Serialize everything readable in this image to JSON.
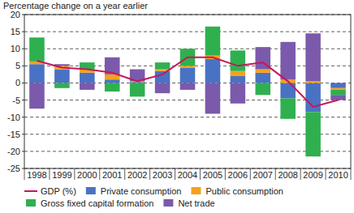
{
  "chart_data": {
    "type": "bar",
    "stacked": true,
    "grid": true,
    "legend": "bottom",
    "y_label": "Percentage change on a year earlier",
    "categories": [
      "1998",
      "1999",
      "2000",
      "2001",
      "2002",
      "2003",
      "2004",
      "2005",
      "2006",
      "2007",
      "2008",
      "2009",
      "2010"
    ],
    "ylim": [
      -25,
      20
    ],
    "yticks": [
      -25,
      -20,
      -15,
      -10,
      -5,
      0,
      5,
      10,
      15,
      20
    ],
    "series": [
      {
        "name": "GDP (%)",
        "type": "line",
        "color": "#c2185b",
        "values": [
          6.5,
          4.5,
          4,
          3,
          0.5,
          2.5,
          7.5,
          7.5,
          5,
          6,
          0.5,
          -7,
          -5
        ]
      },
      {
        "name": "Private consumption",
        "color": "#4a72c4",
        "values": [
          5.5,
          4,
          3,
          1,
          0.3,
          3.5,
          4.5,
          7,
          2,
          3,
          -4.5,
          -8.5,
          -1.5
        ]
      },
      {
        "name": "Public consumption",
        "color": "#f4a21c",
        "values": [
          0.8,
          1,
          1,
          1.5,
          0.2,
          0.5,
          0.5,
          1,
          1.5,
          1,
          1,
          0.5,
          -0.5
        ]
      },
      {
        "name": "Gross fixed capital formation",
        "color": "#2fb04f",
        "values": [
          7,
          -1.5,
          2,
          -2.5,
          -4,
          2,
          5,
          8.5,
          6,
          -3.5,
          -6,
          -13,
          -1.5
        ]
      },
      {
        "name": "Net trade",
        "color": "#7b5aab",
        "values": [
          -7.5,
          0.5,
          -2,
          5,
          3.5,
          -3,
          -2,
          -9,
          -6,
          6.5,
          11,
          14,
          -1.5
        ]
      }
    ]
  }
}
